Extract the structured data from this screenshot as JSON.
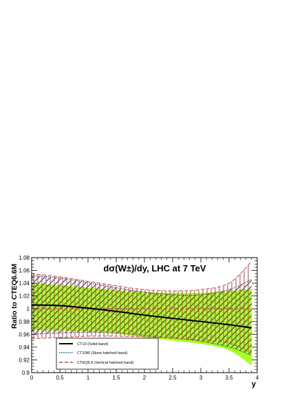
{
  "chart_data": {
    "type": "line",
    "title": "dσ(W±)/dy, LHC at 7 TeV",
    "xlabel": "y",
    "ylabel": "Ratio to CTEQ6.6M",
    "xlim": [
      0,
      4
    ],
    "ylim": [
      0.9,
      1.08
    ],
    "xticks": [
      "0",
      "0.5",
      "1",
      "1.5",
      "2",
      "2.5",
      "3",
      "3.5",
      "4"
    ],
    "yticks": [
      "0.9",
      "0.92",
      "0.94",
      "0.96",
      "0.98",
      "1",
      "1.02",
      "1.04",
      "1.06",
      "1.08"
    ],
    "x": [
      0,
      0.5,
      1,
      1.5,
      2,
      2.5,
      3,
      3.5,
      3.9
    ],
    "series": [
      {
        "name": "CT10 (Solid band)",
        "central": [
          1.006,
          1.005,
          1.001,
          0.996,
          0.99,
          0.985,
          0.98,
          0.975,
          0.97
        ],
        "upper": [
          1.04,
          1.037,
          1.033,
          1.029,
          1.026,
          1.025,
          1.025,
          1.028,
          1.031
        ],
        "lower": [
          0.966,
          0.966,
          0.964,
          0.961,
          0.955,
          0.95,
          0.945,
          0.935,
          0.911
        ],
        "color": "#aaff22"
      },
      {
        "name": "CT10W (Skew hatched band)",
        "central": [
          1.005,
          1.004,
          1.0,
          0.995,
          0.99,
          0.985,
          0.98,
          0.975,
          0.971
        ],
        "upper": [
          1.052,
          1.048,
          1.041,
          1.033,
          1.026,
          1.022,
          1.022,
          1.03,
          1.046
        ],
        "lower": [
          0.96,
          0.962,
          0.963,
          0.962,
          0.958,
          0.954,
          0.949,
          0.94,
          0.927
        ],
        "color": "#1a5a7a"
      },
      {
        "name": "CTEQ6.6 (Vertical hatched band)",
        "central": [
          1.0,
          1.0,
          1.0,
          1.0,
          1.0,
          1.0,
          1.0,
          1.0,
          1.0
        ],
        "upper": [
          1.055,
          1.05,
          1.043,
          1.036,
          1.03,
          1.028,
          1.03,
          1.04,
          1.074
        ],
        "lower": [
          0.953,
          0.955,
          0.957,
          0.957,
          0.956,
          0.954,
          0.951,
          0.946,
          0.93
        ],
        "color": "#d84040"
      }
    ],
    "legend_position": "bottom-left",
    "grid": false
  }
}
